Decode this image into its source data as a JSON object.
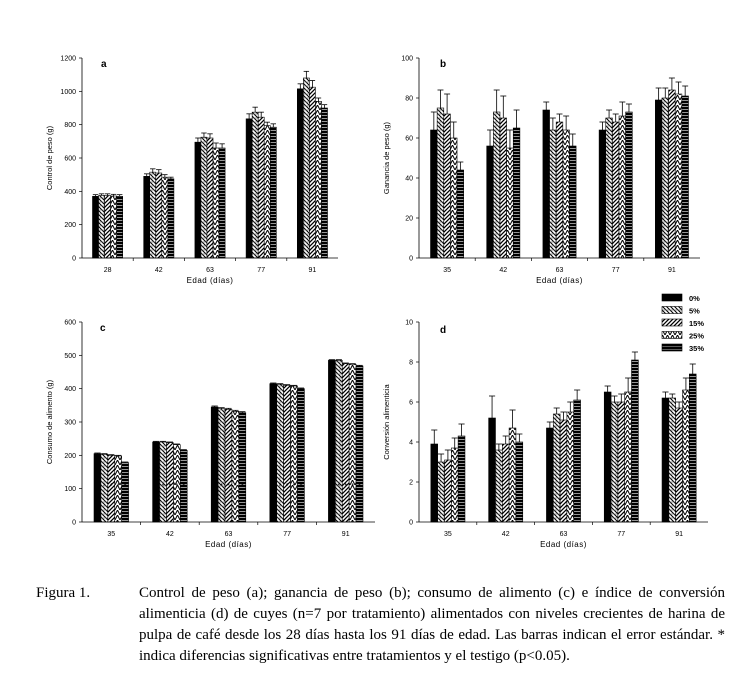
{
  "legend": {
    "labels": [
      "0%",
      "5%",
      "15%",
      "25%",
      "35%"
    ]
  },
  "caption": {
    "label": "Figura 1.",
    "text": "Control de peso (a); ganancia de peso (b); consumo de alimento (c) e índice de conversión alimenticia (d) de cuyes (n=7 por tratamiento) alimentados con niveles crecientes de harina de pulpa de café desde los 28 días hasta los 91 días de edad. Las barras indican el error estándar. * indica diferencias significativas entre tratamientos y el testigo (p<0.05)."
  },
  "chart_data": [
    {
      "type": "bar",
      "panel": "a",
      "xlabel": "Edad (días)",
      "ylabel": "Control de peso (g)",
      "categories": [
        "28",
        "42",
        "63",
        "77",
        "91"
      ],
      "ylim": [
        0,
        1200
      ],
      "yticks": [
        0,
        200,
        400,
        600,
        800,
        1000,
        1200
      ],
      "series": [
        {
          "name": "0%",
          "values": [
            370,
            490,
            695,
            835,
            1015
          ],
          "errors": [
            10,
            15,
            25,
            30,
            30
          ]
        },
        {
          "name": "5%",
          "values": [
            375,
            515,
            725,
            875,
            1080
          ],
          "errors": [
            10,
            20,
            25,
            30,
            40
          ]
        },
        {
          "name": "15%",
          "values": [
            375,
            510,
            720,
            845,
            1025
          ],
          "errors": [
            10,
            20,
            25,
            30,
            40
          ]
        },
        {
          "name": "25%",
          "values": [
            372,
            485,
            660,
            795,
            940
          ],
          "errors": [
            10,
            15,
            30,
            20,
            20
          ]
        },
        {
          "name": "35%",
          "values": [
            370,
            475,
            660,
            785,
            900
          ],
          "errors": [
            10,
            10,
            25,
            20,
            20
          ]
        }
      ]
    },
    {
      "type": "bar",
      "panel": "b",
      "xlabel": "Edad (días)",
      "ylabel": "Ganancia de peso (g)",
      "categories": [
        "35",
        "42",
        "63",
        "77",
        "91"
      ],
      "ylim": [
        0,
        100
      ],
      "yticks": [
        0,
        20,
        40,
        60,
        80,
        100
      ],
      "series": [
        {
          "name": "0%",
          "values": [
            64,
            56,
            74,
            64,
            79
          ],
          "errors": [
            9,
            8,
            4,
            4,
            6
          ]
        },
        {
          "name": "5%",
          "values": [
            75,
            73,
            64,
            70,
            80
          ],
          "errors": [
            9,
            11,
            6,
            4,
            5
          ]
        },
        {
          "name": "15%",
          "values": [
            72,
            70,
            68,
            68,
            84
          ],
          "errors": [
            10,
            11,
            4,
            4,
            6
          ]
        },
        {
          "name": "25%",
          "values": [
            60,
            55,
            64,
            71,
            82
          ],
          "errors": [
            8,
            9,
            7,
            7,
            6
          ]
        },
        {
          "name": "35%",
          "values": [
            44,
            65,
            56,
            73,
            81
          ],
          "errors": [
            4,
            9,
            6,
            4,
            5
          ]
        }
      ]
    },
    {
      "type": "bar",
      "panel": "c",
      "xlabel": "Edad (días)",
      "ylabel": "Consumo de alimento (g)",
      "categories": [
        "35",
        "42",
        "63",
        "77",
        "91"
      ],
      "ylim": [
        0,
        600
      ],
      "yticks": [
        0,
        100,
        200,
        300,
        400,
        500,
        600
      ],
      "series": [
        {
          "name": "0%",
          "values": [
            205,
            240,
            345,
            415,
            485
          ],
          "errors": [
            2,
            2,
            3,
            2,
            2
          ]
        },
        {
          "name": "5%",
          "values": [
            203,
            240,
            340,
            413,
            485
          ],
          "errors": [
            2,
            2,
            3,
            2,
            2
          ]
        },
        {
          "name": "15%",
          "values": [
            200,
            238,
            338,
            410,
            475
          ],
          "errors": [
            2,
            2,
            3,
            2,
            2
          ]
        },
        {
          "name": "25%",
          "values": [
            198,
            232,
            332,
            408,
            473
          ],
          "errors": [
            2,
            2,
            3,
            2,
            2
          ]
        },
        {
          "name": "35%",
          "values": [
            178,
            215,
            328,
            400,
            468
          ],
          "errors": [
            2,
            2,
            3,
            2,
            2
          ]
        }
      ],
      "significance_markers": "*"
    },
    {
      "type": "bar",
      "panel": "d",
      "xlabel": "Edad (días)",
      "ylabel": "Conversión alimenticia",
      "categories": [
        "35",
        "42",
        "63",
        "77",
        "91"
      ],
      "ylim": [
        0,
        10
      ],
      "yticks": [
        0,
        2,
        4,
        6,
        8,
        10
      ],
      "legend_position": "top-right",
      "series": [
        {
          "name": "0%",
          "values": [
            3.9,
            5.2,
            4.7,
            6.5,
            6.2
          ],
          "errors": [
            0.7,
            1.1,
            0.3,
            0.3,
            0.3
          ]
        },
        {
          "name": "5%",
          "values": [
            3.0,
            3.6,
            5.4,
            6.0,
            6.2
          ],
          "errors": [
            0.4,
            0.3,
            0.3,
            0.3,
            0.2
          ]
        },
        {
          "name": "15%",
          "values": [
            3.1,
            3.9,
            5.1,
            6.0,
            5.7
          ],
          "errors": [
            0.5,
            0.4,
            0.4,
            0.4,
            0.3
          ]
        },
        {
          "name": "25%",
          "values": [
            3.7,
            4.7,
            5.5,
            6.5,
            6.6
          ],
          "errors": [
            0.5,
            0.9,
            0.5,
            0.7,
            0.6
          ]
        },
        {
          "name": "35%",
          "values": [
            4.3,
            4.0,
            6.1,
            8.1,
            7.4
          ],
          "errors": [
            0.6,
            0.4,
            0.5,
            0.4,
            0.5
          ]
        }
      ]
    }
  ]
}
